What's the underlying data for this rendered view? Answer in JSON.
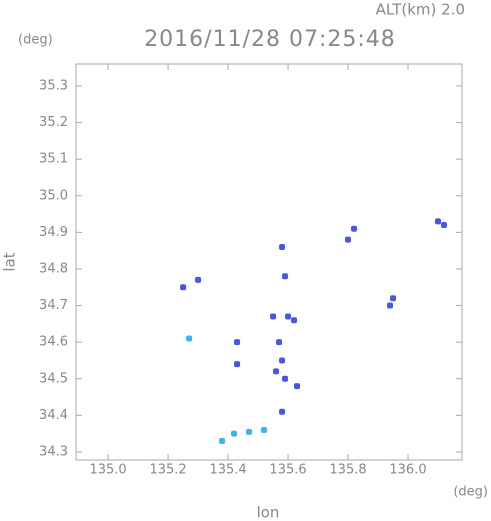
{
  "chart_data": {
    "type": "scatter",
    "title": "2016/11/28 07:25:48",
    "subtitle": "ALT(km) 2.0",
    "x_label": "lon",
    "y_label": "lat",
    "x_unit": "(deg)",
    "y_unit": "(deg)",
    "xlim": [
      134.893,
      136.18
    ],
    "ylim": [
      34.278,
      35.36
    ],
    "xticks": [
      {
        "value": 135,
        "label": "135.0"
      },
      135.2,
      135.4,
      135.6,
      135.8,
      {
        "value": 136,
        "label": "136.0"
      }
    ],
    "yticks": [
      {
        "value": 34.3,
        "label": "34.3"
      },
      34.4,
      34.5,
      34.6,
      34.7,
      34.8,
      34.9,
      {
        "value": 35,
        "label": "35.0"
      },
      35.1,
      35.2,
      35.3
    ],
    "series": [
      {
        "color": "#4a55e6",
        "x": [
          136.12,
          136.1,
          135.8,
          135.82,
          135.95,
          135.94,
          135.25,
          135.3,
          135.58,
          135.59,
          135.55,
          135.6,
          135.62,
          135.57,
          135.58,
          135.56,
          135.59,
          135.63,
          135.43,
          135.43,
          135.58
        ],
        "y": [
          34.92,
          34.93,
          34.88,
          34.91,
          34.72,
          34.7,
          34.75,
          34.77,
          34.86,
          34.78,
          34.67,
          34.67,
          34.66,
          34.6,
          34.55,
          34.52,
          34.5,
          34.48,
          34.6,
          34.54,
          34.41
        ]
      },
      {
        "color": "#3cb4f0",
        "x": [
          135.27,
          135.38,
          135.42,
          135.47,
          135.52
        ],
        "y": [
          34.61,
          34.33,
          34.35,
          34.355,
          34.36
        ]
      }
    ]
  }
}
